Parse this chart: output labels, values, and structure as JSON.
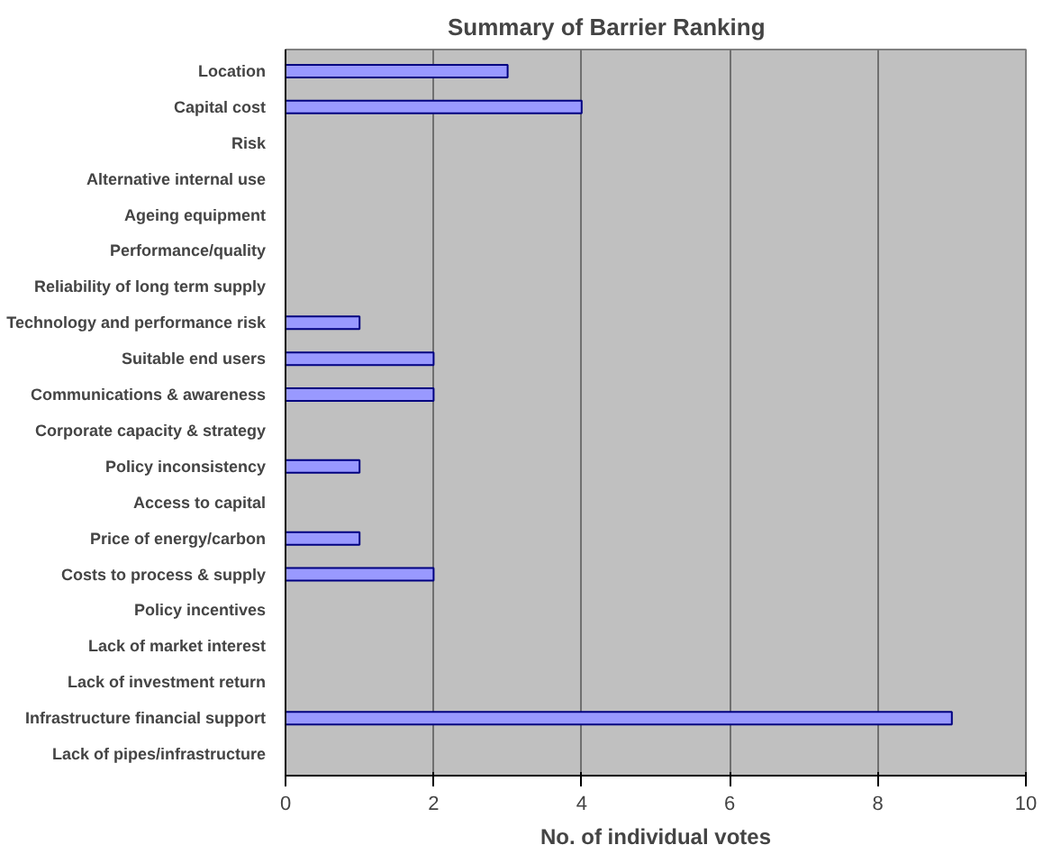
{
  "chart_data": {
    "type": "bar",
    "orientation": "horizontal",
    "title": "Summary of Barrier Ranking",
    "xlabel": "No. of individual votes",
    "categories": [
      "Location",
      "Capital cost",
      "Risk",
      "Alternative internal use",
      "Ageing equipment",
      "Performance/quality",
      "Reliability of long term supply",
      "Technology and performance risk",
      "Suitable end users",
      "Communications & awareness",
      "Corporate capacity & strategy",
      "Policy inconsistency",
      "Access to capital",
      "Price of energy/carbon",
      "Costs to process & supply",
      "Policy incentives",
      "Lack of market interest",
      "Lack of investment return",
      "Infrastructure financial support",
      "Lack of pipes/infrastructure"
    ],
    "values": [
      3,
      4,
      0,
      0,
      0,
      0,
      0,
      1,
      2,
      2,
      0,
      1,
      0,
      1,
      2,
      0,
      0,
      0,
      9,
      0
    ],
    "color": "#9999ff",
    "xlim": [
      0,
      10
    ],
    "xticks": [
      0,
      2,
      4,
      6,
      8,
      10
    ],
    "grid": "x"
  }
}
